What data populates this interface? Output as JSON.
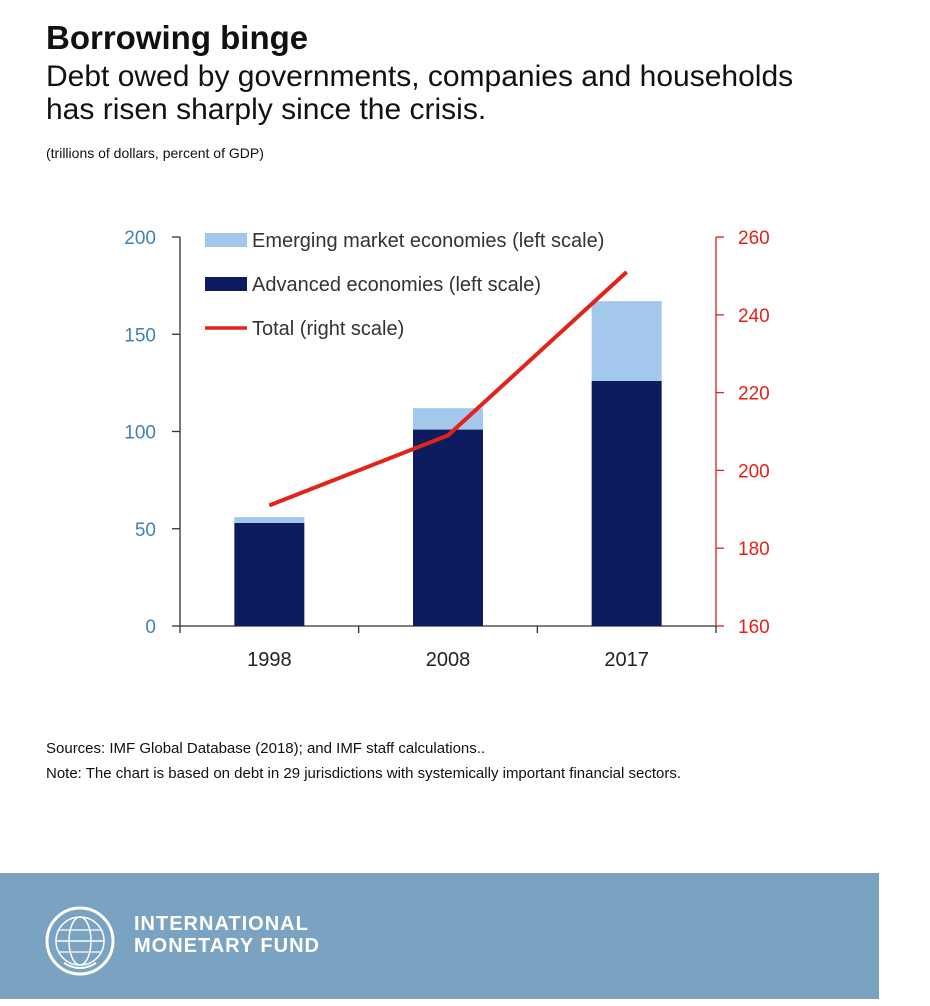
{
  "header": {
    "title": "Borrowing binge",
    "subtitle": "Debt owed by governments, companies and households has risen sharply since the crisis.",
    "units": "(trillions of dollars, percent of GDP)"
  },
  "chart_data": {
    "type": "bar",
    "categories": [
      "1998",
      "2008",
      "2017"
    ],
    "series": [
      {
        "name": "Advanced economies (left scale)",
        "kind": "bar-stacked",
        "axis": "left",
        "color": "#0c1c5e",
        "values": [
          53,
          101,
          126
        ]
      },
      {
        "name": "Emerging market economies (left scale)",
        "kind": "bar-stacked",
        "axis": "left",
        "color": "#a4c8ec",
        "values": [
          3,
          11,
          41
        ]
      },
      {
        "name": "Total (right scale)",
        "kind": "line",
        "axis": "right",
        "color": "#e2231a",
        "values": [
          191,
          209,
          251
        ]
      }
    ],
    "legend_order": [
      1,
      0,
      2
    ],
    "y_left": {
      "min": 0,
      "max": 200,
      "ticks": [
        0,
        50,
        100,
        150,
        200
      ],
      "color": "#3f82b8"
    },
    "y_right": {
      "min": 160,
      "max": 260,
      "ticks": [
        160,
        180,
        200,
        220,
        240,
        260
      ],
      "color": "#e2231a"
    },
    "legend_position": "top-left",
    "grid": false
  },
  "notes": {
    "sources": "Sources: IMF Global Database (2018); and IMF staff calculations..",
    "note": "Note: The chart is based on debt in 29 jurisdictions with systemically important financial sectors."
  },
  "footer": {
    "logo_line1": "INTERNATIONAL",
    "logo_line2": "MONETARY FUND",
    "logo_icon": "imf-seal-icon",
    "background": "#7aa3c2"
  }
}
